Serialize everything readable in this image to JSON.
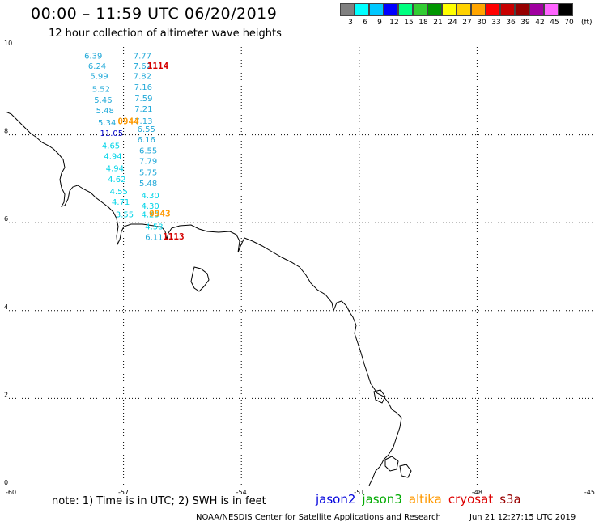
{
  "header": {
    "title": "00:00 – 11:59 UTC 06/20/2019",
    "subtitle": "12 hour collection of altimeter wave heights"
  },
  "colorbar": {
    "unit": "(ft)",
    "bins": [
      {
        "label": "3",
        "color": "#808080"
      },
      {
        "label": "6",
        "color": "#00ffff"
      },
      {
        "label": "9",
        "color": "#00c8ff"
      },
      {
        "label": "12",
        "color": "#0000ff"
      },
      {
        "label": "15",
        "color": "#00ff7f"
      },
      {
        "label": "18",
        "color": "#32cd32"
      },
      {
        "label": "21",
        "color": "#009600"
      },
      {
        "label": "24",
        "color": "#ffff00"
      },
      {
        "label": "27",
        "color": "#ffd200"
      },
      {
        "label": "30",
        "color": "#ffa500"
      },
      {
        "label": "33",
        "color": "#ff0000"
      },
      {
        "label": "36",
        "color": "#c80000"
      },
      {
        "label": "39",
        "color": "#960000"
      },
      {
        "label": "42",
        "color": "#a000a0"
      },
      {
        "label": "45",
        "color": "#ff64ff"
      },
      {
        "label": "70",
        "color": "#000000"
      }
    ]
  },
  "axes": {
    "lon_ticks": [
      "-60",
      "-57",
      "-54",
      "-51",
      "-48",
      "-45"
    ],
    "lat_ticks": [
      "0",
      "2",
      "4",
      "6",
      "8",
      "10"
    ],
    "lon_range": [
      -60,
      -45
    ],
    "lat_range": [
      0,
      10
    ],
    "grid": "dotted"
  },
  "wave_heights": [
    {
      "value": "6.39",
      "lon": -58.0,
      "lat": 9.73,
      "color": "#1fa8d8"
    },
    {
      "value": "6.24",
      "lon": -57.9,
      "lat": 9.5,
      "color": "#1fa8d8"
    },
    {
      "value": "5.99",
      "lon": -57.85,
      "lat": 9.27,
      "color": "#1fa8d8"
    },
    {
      "value": "5.52",
      "lon": -57.8,
      "lat": 8.98,
      "color": "#1fa8d8"
    },
    {
      "value": "5.46",
      "lon": -57.75,
      "lat": 8.73,
      "color": "#1fa8d8"
    },
    {
      "value": "5.48",
      "lon": -57.7,
      "lat": 8.49,
      "color": "#1fa8d8"
    },
    {
      "value": "5.34",
      "lon": -57.65,
      "lat": 8.21,
      "color": "#1fa8d8"
    },
    {
      "value": "11.05",
      "lon": -57.6,
      "lat": 7.97,
      "color": "#0000c8"
    },
    {
      "value": "4.65",
      "lon": -57.55,
      "lat": 7.69,
      "color": "#00d4e8"
    },
    {
      "value": "4.94",
      "lon": -57.5,
      "lat": 7.45,
      "color": "#00d4e8"
    },
    {
      "value": "4.94",
      "lon": -57.45,
      "lat": 7.17,
      "color": "#00d4e8"
    },
    {
      "value": "4.62",
      "lon": -57.4,
      "lat": 6.92,
      "color": "#00d4e8"
    },
    {
      "value": "4.55",
      "lon": -57.35,
      "lat": 6.65,
      "color": "#00d4e8"
    },
    {
      "value": "4.71",
      "lon": -57.3,
      "lat": 6.41,
      "color": "#00d4e8"
    },
    {
      "value": "3.55",
      "lon": -57.2,
      "lat": 6.12,
      "color": "#00d4e8"
    },
    {
      "value": "7.77",
      "lon": -56.75,
      "lat": 9.73,
      "color": "#1fa8d8"
    },
    {
      "value": "7.62",
      "lon": -56.75,
      "lat": 9.5,
      "color": "#1fa8d8"
    },
    {
      "value": "7.82",
      "lon": -56.75,
      "lat": 9.27,
      "color": "#1fa8d8"
    },
    {
      "value": "7.16",
      "lon": -56.73,
      "lat": 9.02,
      "color": "#1fa8d8"
    },
    {
      "value": "7.59",
      "lon": -56.72,
      "lat": 8.77,
      "color": "#1fa8d8"
    },
    {
      "value": "7.21",
      "lon": -56.72,
      "lat": 8.53,
      "color": "#1fa8d8"
    },
    {
      "value": "7.13",
      "lon": -56.72,
      "lat": 8.25,
      "color": "#1fa8d8"
    },
    {
      "value": "6.55",
      "lon": -56.65,
      "lat": 8.07,
      "color": "#1fa8d8"
    },
    {
      "value": "6.16",
      "lon": -56.65,
      "lat": 7.83,
      "color": "#1fa8d8"
    },
    {
      "value": "6.55",
      "lon": -56.6,
      "lat": 7.58,
      "color": "#1fa8d8"
    },
    {
      "value": "7.79",
      "lon": -56.6,
      "lat": 7.34,
      "color": "#1fa8d8"
    },
    {
      "value": "5.75",
      "lon": -56.6,
      "lat": 7.08,
      "color": "#1fa8d8"
    },
    {
      "value": "5.48",
      "lon": -56.6,
      "lat": 6.83,
      "color": "#1fa8d8"
    },
    {
      "value": "4.30",
      "lon": -56.55,
      "lat": 6.56,
      "color": "#00d4e8"
    },
    {
      "value": "4.30",
      "lon": -56.55,
      "lat": 6.32,
      "color": "#00d4e8"
    },
    {
      "value": "4.23",
      "lon": -56.55,
      "lat": 6.12,
      "color": "#00d4e8"
    },
    {
      "value": "4.58",
      "lon": -56.45,
      "lat": 5.85,
      "color": "#00d4e8"
    },
    {
      "value": "6.11",
      "lon": -56.45,
      "lat": 5.61,
      "color": "#1fa8d8"
    }
  ],
  "pass_times": [
    {
      "label": "1114",
      "lon": -56.4,
      "lat": 9.5,
      "color": "#d40000"
    },
    {
      "label": "0944",
      "lon": -57.15,
      "lat": 8.24,
      "color": "#ff9900"
    },
    {
      "label": "0943",
      "lon": -56.35,
      "lat": 6.14,
      "color": "#ff9900"
    },
    {
      "label": "1113",
      "lon": -56.0,
      "lat": 5.62,
      "color": "#d40000"
    }
  ],
  "footer": {
    "note": "note:  1) Time is in UTC;  2) SWH is in feet",
    "legend": [
      {
        "name": "jason2",
        "color": "#0000dd"
      },
      {
        "name": "jason3",
        "color": "#00aa00"
      },
      {
        "name": "altika",
        "color": "#ff9900"
      },
      {
        "name": "cryosat",
        "color": "#dd0000"
      },
      {
        "name": "s3a",
        "color": "#990000"
      }
    ],
    "credit": "NOAA/NESDIS Center for Satellite Applications and Research",
    "timestamp": "Jun 21 12:27:15 UTC 2019"
  }
}
